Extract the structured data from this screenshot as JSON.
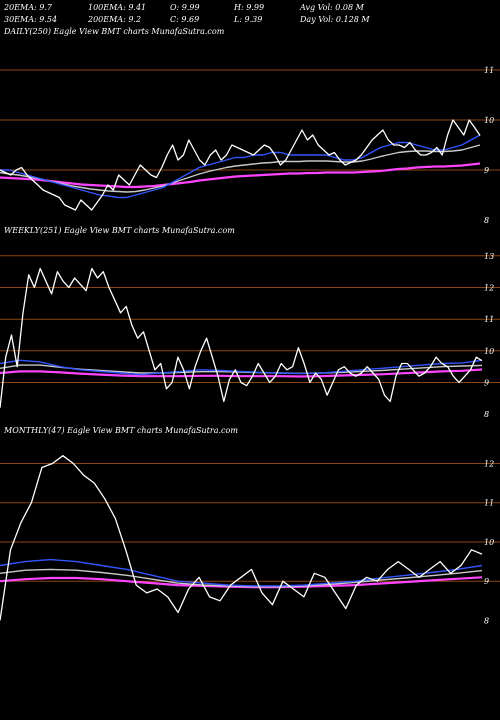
{
  "header": {
    "row1": [
      "20EMA: 9.7",
      "100EMA: 9.41",
      "O: 9.99",
      "H: 9.99",
      "Avg Vol: 0.08  M"
    ],
    "row2": [
      "30EMA: 9.54",
      "200EMA: 9.2",
      "C: 9.69",
      "L: 9.39",
      "Day Vol: 0.128  M"
    ]
  },
  "panels": [
    {
      "title": "DAILY(250) Eagle  View  BMT charts MunafaSutra.com",
      "price_labels": [
        "11",
        "10",
        "9",
        "8"
      ],
      "grid_values": [
        11,
        10,
        9
      ]
    },
    {
      "title": "WEEKLY(251) Eagle  View  BMT charts MunafaSutra.com",
      "price_labels": [
        "13",
        "12",
        "11",
        "10",
        "9",
        "8"
      ],
      "grid_values": [
        13,
        12,
        11,
        10,
        9
      ]
    },
    {
      "title": "MONTHLY(47) Eagle  View  BMT charts MunafaSutra.com",
      "price_labels": [
        "12",
        "11",
        "10",
        "9",
        "8"
      ],
      "grid_values": [
        12,
        11,
        10,
        9
      ]
    }
  ],
  "colors": {
    "background": "#000000",
    "grid": "#8b4513",
    "price": "#ffffff",
    "ema_fast": "#3355ff",
    "ema_mid": "#c8c8c8",
    "ema_slow": "#ff44ff",
    "ema_gold": "#d4a017"
  },
  "chart_data": [
    {
      "type": "line",
      "title": "DAILY(250) Eagle  View  BMT charts MunafaSutra.com",
      "ylim": [
        7.6,
        11.6
      ],
      "series": [
        {
          "name": "price",
          "values": [
            9.0,
            8.95,
            8.9,
            9.0,
            9.05,
            8.9,
            8.8,
            8.7,
            8.6,
            8.55,
            8.5,
            8.45,
            8.3,
            8.25,
            8.2,
            8.4,
            8.3,
            8.2,
            8.35,
            8.5,
            8.7,
            8.6,
            8.9,
            8.8,
            8.7,
            8.9,
            9.1,
            9.0,
            8.9,
            8.85,
            9.05,
            9.3,
            9.5,
            9.2,
            9.3,
            9.6,
            9.4,
            9.2,
            9.1,
            9.3,
            9.4,
            9.2,
            9.3,
            9.5,
            9.45,
            9.4,
            9.35,
            9.3,
            9.4,
            9.5,
            9.45,
            9.3,
            9.1,
            9.2,
            9.4,
            9.6,
            9.8,
            9.6,
            9.7,
            9.5,
            9.4,
            9.3,
            9.35,
            9.2,
            9.1,
            9.15,
            9.2,
            9.3,
            9.45,
            9.6,
            9.7,
            9.8,
            9.6,
            9.5,
            9.5,
            9.45,
            9.55,
            9.4,
            9.3,
            9.3,
            9.35,
            9.45,
            9.3,
            9.7,
            10.0,
            9.85,
            9.7,
            10.0,
            9.85,
            9.69
          ]
        },
        {
          "name": "ema_fast",
          "values": [
            9.0,
            9.0,
            8.95,
            8.9,
            8.85,
            8.8,
            8.75,
            8.7,
            8.65,
            8.6,
            8.55,
            8.5,
            8.48,
            8.45,
            8.45,
            8.5,
            8.55,
            8.6,
            8.65,
            8.75,
            8.85,
            8.95,
            9.05,
            9.1,
            9.15,
            9.2,
            9.25,
            9.25,
            9.3,
            9.3,
            9.35,
            9.35,
            9.3,
            9.3,
            9.3,
            9.3,
            9.3,
            9.25,
            9.2,
            9.2,
            9.25,
            9.35,
            9.45,
            9.5,
            9.55,
            9.55,
            9.5,
            9.45,
            9.4,
            9.4,
            9.45,
            9.5,
            9.6,
            9.7
          ]
        },
        {
          "name": "ema_mid",
          "values": [
            8.95,
            8.92,
            8.9,
            8.87,
            8.84,
            8.8,
            8.76,
            8.72,
            8.68,
            8.65,
            8.62,
            8.6,
            8.58,
            8.57,
            8.56,
            8.57,
            8.6,
            8.64,
            8.68,
            8.74,
            8.8,
            8.86,
            8.92,
            8.97,
            9.01,
            9.05,
            9.08,
            9.1,
            9.12,
            9.14,
            9.15,
            9.17,
            9.17,
            9.17,
            9.18,
            9.18,
            9.18,
            9.17,
            9.16,
            9.16,
            9.18,
            9.22,
            9.27,
            9.31,
            9.35,
            9.37,
            9.38,
            9.38,
            9.37,
            9.37,
            9.38,
            9.4,
            9.45,
            9.5
          ]
        },
        {
          "name": "ema_slow",
          "values": [
            8.85,
            8.84,
            8.83,
            8.82,
            8.81,
            8.79,
            8.77,
            8.75,
            8.73,
            8.71,
            8.7,
            8.69,
            8.68,
            8.67,
            8.66,
            8.66,
            8.67,
            8.68,
            8.7,
            8.72,
            8.74,
            8.76,
            8.79,
            8.81,
            8.83,
            8.85,
            8.87,
            8.88,
            8.89,
            8.9,
            8.91,
            8.92,
            8.93,
            8.93,
            8.94,
            8.94,
            8.95,
            8.95,
            8.95,
            8.95,
            8.96,
            8.97,
            8.98,
            9.0,
            9.02,
            9.03,
            9.05,
            9.06,
            9.07,
            9.07,
            9.08,
            9.09,
            9.11,
            9.13
          ]
        }
      ]
    },
    {
      "type": "line",
      "title": "WEEKLY(251) Eagle  View  BMT charts MunafaSutra.com",
      "ylim": [
        7.5,
        13.5
      ],
      "series": [
        {
          "name": "price",
          "values": [
            8.2,
            9.8,
            10.5,
            9.5,
            11.2,
            12.4,
            12.0,
            12.6,
            12.2,
            11.8,
            12.5,
            12.2,
            12.0,
            12.3,
            12.1,
            11.9,
            12.6,
            12.3,
            12.5,
            12.0,
            11.6,
            11.2,
            11.4,
            10.8,
            10.4,
            10.6,
            10.0,
            9.4,
            9.6,
            8.8,
            9.0,
            9.8,
            9.4,
            8.8,
            9.5,
            10.0,
            10.4,
            9.8,
            9.2,
            8.4,
            9.1,
            9.4,
            9.0,
            8.9,
            9.2,
            9.6,
            9.3,
            9.0,
            9.2,
            9.6,
            9.4,
            9.5,
            10.1,
            9.6,
            9.0,
            9.3,
            9.1,
            8.6,
            9.0,
            9.4,
            9.5,
            9.3,
            9.2,
            9.3,
            9.5,
            9.3,
            9.1,
            8.6,
            8.4,
            9.2,
            9.6,
            9.6,
            9.4,
            9.2,
            9.3,
            9.5,
            9.8,
            9.6,
            9.5,
            9.2,
            9.0,
            9.2,
            9.4,
            9.8,
            9.69
          ]
        },
        {
          "name": "ema_fast",
          "values": [
            9.6,
            9.7,
            9.65,
            9.5,
            9.4,
            9.35,
            9.3,
            9.25,
            9.3,
            9.35,
            9.4,
            9.38,
            9.35,
            9.32,
            9.3,
            9.28,
            9.3,
            9.35,
            9.4,
            9.45,
            9.5,
            9.55,
            9.6,
            9.62,
            9.7
          ]
        },
        {
          "name": "ema_mid",
          "values": [
            9.45,
            9.55,
            9.55,
            9.48,
            9.42,
            9.38,
            9.34,
            9.3,
            9.3,
            9.32,
            9.34,
            9.34,
            9.33,
            9.31,
            9.3,
            9.29,
            9.3,
            9.32,
            9.35,
            9.38,
            9.42,
            9.46,
            9.5,
            9.52,
            9.54
          ]
        },
        {
          "name": "ema_slow",
          "values": [
            9.3,
            9.35,
            9.35,
            9.32,
            9.28,
            9.25,
            9.22,
            9.2,
            9.2,
            9.2,
            9.21,
            9.21,
            9.2,
            9.2,
            9.2,
            9.19,
            9.2,
            9.22,
            9.24,
            9.26,
            9.29,
            9.32,
            9.35,
            9.37,
            9.41
          ]
        }
      ]
    },
    {
      "type": "line",
      "title": "MONTHLY(47) Eagle  View  BMT charts MunafaSutra.com",
      "ylim": [
        7.5,
        12.6
      ],
      "series": [
        {
          "name": "price",
          "values": [
            8.0,
            9.8,
            10.5,
            11.0,
            11.9,
            12.0,
            12.2,
            12.0,
            11.7,
            11.5,
            11.1,
            10.6,
            9.8,
            8.9,
            8.7,
            8.8,
            8.6,
            8.2,
            8.8,
            9.1,
            8.6,
            8.5,
            8.9,
            9.1,
            9.3,
            8.7,
            8.4,
            9.0,
            8.8,
            8.6,
            9.2,
            9.1,
            8.7,
            8.3,
            8.9,
            9.1,
            9.0,
            9.3,
            9.5,
            9.3,
            9.1,
            9.3,
            9.5,
            9.2,
            9.4,
            9.8,
            9.69
          ]
        },
        {
          "name": "ema_fast",
          "values": [
            9.4,
            9.5,
            9.55,
            9.5,
            9.4,
            9.3,
            9.15,
            9.0,
            8.95,
            8.9,
            8.88,
            8.88,
            8.9,
            8.95,
            9.0,
            9.08,
            9.15,
            9.22,
            9.3,
            9.4
          ]
        },
        {
          "name": "ema_mid",
          "values": [
            9.2,
            9.28,
            9.3,
            9.28,
            9.22,
            9.15,
            9.05,
            8.95,
            8.9,
            8.88,
            8.86,
            8.86,
            8.88,
            8.92,
            8.97,
            9.03,
            9.08,
            9.14,
            9.2,
            9.27
          ]
        },
        {
          "name": "ema_slow",
          "values": [
            9.0,
            9.05,
            9.08,
            9.08,
            9.05,
            9.0,
            8.95,
            8.9,
            8.88,
            8.86,
            8.85,
            8.85,
            8.86,
            8.88,
            8.9,
            8.94,
            8.98,
            9.02,
            9.06,
            9.1
          ]
        }
      ]
    }
  ]
}
